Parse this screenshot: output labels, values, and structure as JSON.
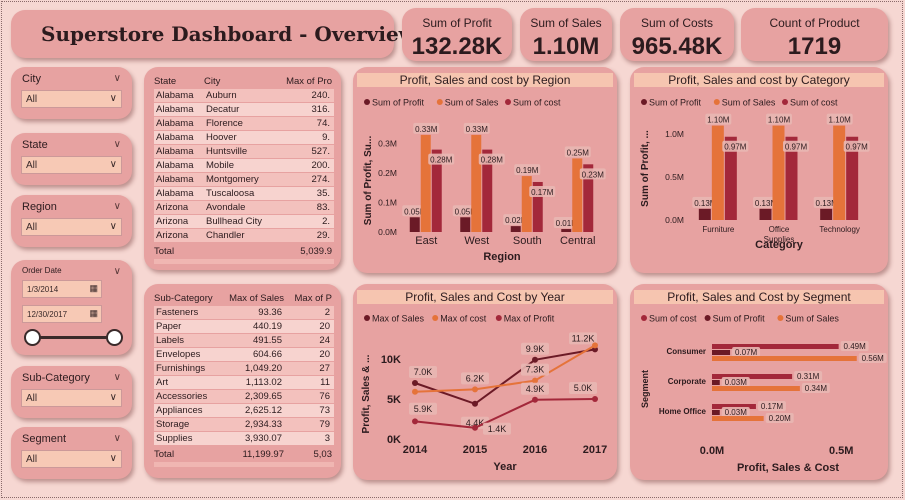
{
  "title": "Superstore Dashboard - Overview",
  "kpis": [
    {
      "label": "Sum of Profit",
      "value": "132.28K"
    },
    {
      "label": "Sum of Sales",
      "value": "1.10M"
    },
    {
      "label": "Sum of Costs",
      "value": "965.48K"
    },
    {
      "label": "Count of Product",
      "value": "1719"
    }
  ],
  "slicers": {
    "city": {
      "label": "City",
      "value": "All"
    },
    "state": {
      "label": "State",
      "value": "All"
    },
    "region": {
      "label": "Region",
      "value": "All"
    },
    "order_date": {
      "label": "Order Date",
      "start": "1/3/2014",
      "end": "12/30/2017"
    },
    "subcategory": {
      "label": "Sub-Category",
      "value": "All"
    },
    "segment": {
      "label": "Segment",
      "value": "All"
    }
  },
  "city_table": {
    "headers": [
      "State",
      "City",
      "Max of Pro"
    ],
    "rows": [
      [
        "Alabama",
        "Auburn",
        "240."
      ],
      [
        "Alabama",
        "Decatur",
        "316."
      ],
      [
        "Alabama",
        "Florence",
        "74."
      ],
      [
        "Alabama",
        "Hoover",
        "9."
      ],
      [
        "Alabama",
        "Huntsville",
        "527."
      ],
      [
        "Alabama",
        "Mobile",
        "200."
      ],
      [
        "Alabama",
        "Montgomery",
        "274."
      ],
      [
        "Alabama",
        "Tuscaloosa",
        "35."
      ],
      [
        "Arizona",
        "Avondale",
        "83."
      ],
      [
        "Arizona",
        "Bullhead City",
        "2."
      ],
      [
        "Arizona",
        "Chandler",
        "29."
      ]
    ],
    "total_label": "Total",
    "total_value": "5,039.9"
  },
  "subcat_table": {
    "headers": [
      "Sub-Category",
      "Max of Sales",
      "Max of P"
    ],
    "rows": [
      [
        "Fasteners",
        "93.36",
        "2"
      ],
      [
        "Paper",
        "440.19",
        "20"
      ],
      [
        "Labels",
        "491.55",
        "24"
      ],
      [
        "Envelopes",
        "604.66",
        "20"
      ],
      [
        "Furnishings",
        "1,049.20",
        "27"
      ],
      [
        "Art",
        "1,113.02",
        "11"
      ],
      [
        "Accessories",
        "2,309.65",
        "76"
      ],
      [
        "Appliances",
        "2,625.12",
        "73"
      ],
      [
        "Storage",
        "2,934.33",
        "79"
      ],
      [
        "Supplies",
        "3,930.07",
        "3"
      ]
    ],
    "total_label": "Total",
    "total_value": "11,199.97",
    "total_value2": "5,03"
  },
  "colors": {
    "profit": "#6b1a26",
    "sales": "#e5733a",
    "cost": "#a3283a"
  },
  "chart_data": [
    {
      "type": "bar",
      "title": "Profit, Sales and cost by Region",
      "xlabel": "Region",
      "ylabel": "Sum of Profit, Su...",
      "legend": [
        "Sum of Profit",
        "Sum of Sales",
        "Sum of cost"
      ],
      "categories": [
        "East",
        "West",
        "South",
        "Central"
      ],
      "series": [
        {
          "name": "Sum of Profit",
          "values": [
            0.05,
            0.05,
            0.02,
            0.01
          ],
          "labels": [
            "0.05M",
            "0.05M",
            "0.02M",
            "0.01M"
          ]
        },
        {
          "name": "Sum of Sales",
          "values": [
            0.33,
            0.33,
            0.19,
            0.25
          ],
          "labels": [
            "0.33M",
            "0.33M",
            "0.19M",
            "0.25M"
          ]
        },
        {
          "name": "Sum of cost",
          "values": [
            0.28,
            0.28,
            0.17,
            0.23
          ],
          "labels": [
            "0.28M",
            "0.28M",
            "0.17M",
            "0.23M"
          ]
        }
      ],
      "yticks": [
        "0.0M",
        "0.1M",
        "0.2M",
        "0.3M"
      ],
      "ylim": [
        0,
        0.35
      ]
    },
    {
      "type": "bar",
      "title": "Profit, Sales and cost by Category",
      "xlabel": "Category",
      "ylabel": "Sum of Profit, ...",
      "legend": [
        "Sum of Profit",
        "Sum of Sales",
        "Sum of cost"
      ],
      "categories": [
        "Furniture",
        "Office Supplies",
        "Technology"
      ],
      "series": [
        {
          "name": "Sum of Profit",
          "values": [
            0.13,
            0.13,
            0.13
          ],
          "labels": [
            "0.13M",
            "0.13M",
            "0.13M"
          ]
        },
        {
          "name": "Sum of Sales",
          "values": [
            1.1,
            1.1,
            1.1
          ],
          "labels": [
            "1.10M",
            "1.10M",
            "1.10M"
          ]
        },
        {
          "name": "Sum of cost",
          "values": [
            0.97,
            0.97,
            0.97
          ],
          "labels": [
            "0.97M",
            "0.97M",
            "0.97M"
          ]
        }
      ],
      "yticks": [
        "0.0M",
        "0.5M",
        "1.0M"
      ],
      "ylim": [
        0,
        1.2
      ]
    },
    {
      "type": "line",
      "title": "Profit, Sales and Cost by Year",
      "xlabel": "Year",
      "ylabel": "Profit, Sales & ...",
      "legend": [
        "Max of Sales",
        "Max of cost",
        "Max of Profit"
      ],
      "x": [
        "2014",
        "2015",
        "2016",
        "2017"
      ],
      "series": [
        {
          "name": "Max of Sales",
          "values": [
            7.0,
            4.4,
            9.9,
            11.2
          ],
          "labels": [
            "7.0K",
            "4.4K",
            "9.9K",
            "11.2K"
          ]
        },
        {
          "name": "Max of cost",
          "values": [
            5.9,
            6.2,
            7.3,
            11.7
          ],
          "labels": [
            "5.9K",
            "6.2K",
            "7.3K",
            ""
          ]
        },
        {
          "name": "Max of Profit",
          "values": [
            2.2,
            1.4,
            4.9,
            5.0
          ],
          "labels": [
            "",
            "1.4K",
            "4.9K",
            "5.0K"
          ]
        }
      ],
      "yticks": [
        "0K",
        "5K",
        "10K"
      ],
      "ylim": [
        0,
        12.5
      ]
    },
    {
      "type": "bar",
      "title": "Profit, Sales and Cost by Segment",
      "xlabel": "Profit, Sales & Cost",
      "ylabel": "Segment",
      "legend": [
        "Sum of cost",
        "Sum of Profit",
        "Sum of Sales"
      ],
      "categories": [
        "Consumer",
        "Corporate",
        "Home Office"
      ],
      "series": [
        {
          "name": "Sum of cost",
          "values": [
            0.49,
            0.31,
            0.17
          ],
          "labels": [
            "0.49M",
            "0.31M",
            "0.17M"
          ]
        },
        {
          "name": "Sum of Profit",
          "values": [
            0.07,
            0.03,
            0.03
          ],
          "labels": [
            "0.07M",
            "0.03M",
            "0.03M"
          ]
        },
        {
          "name": "Sum of Sales",
          "values": [
            0.56,
            0.34,
            0.2
          ],
          "labels": [
            "0.56M",
            "0.34M",
            "0.20M"
          ]
        }
      ],
      "xticks": [
        "0.0M",
        "0.5M"
      ],
      "xlim": [
        0,
        0.65
      ]
    }
  ]
}
